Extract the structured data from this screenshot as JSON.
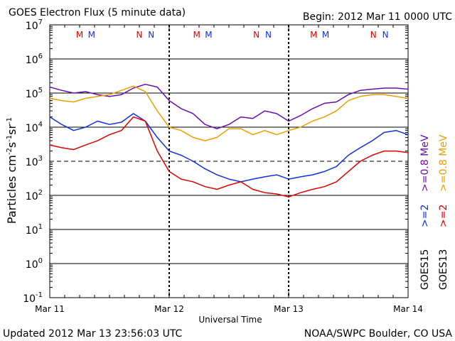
{
  "chart_data": {
    "type": "line",
    "title": "GOES Electron Flux (5 minute data)",
    "begin_label": "Begin: 2012 Mar 11 0000 UTC",
    "xlabel": "Universal Time",
    "ylabel": "Particles cm",
    "ylabel_exp1": "-2",
    "ylabel_mid": "s",
    "ylabel_exp2": "-1",
    "ylabel_end": "sr",
    "ylabel_exp3": "-1",
    "x_ticks": [
      "Mar 11",
      "Mar 12",
      "Mar 13",
      "Mar 14"
    ],
    "x_range_days": [
      0,
      3
    ],
    "y_scale": "log",
    "ylim": [
      0.1,
      10000000
    ],
    "y_tick_exponents": [
      "7",
      "6",
      "5",
      "4",
      "3",
      "2",
      "1",
      "0",
      "-1"
    ],
    "dashed_threshold": 1000,
    "footer_left": "Updated 2012 Mar 13 23:56:03 UTC",
    "footer_right": "NOAA/SWPC Boulder, CO USA",
    "noon_midnight_markers": [
      {
        "day": 0.25,
        "label": "M",
        "sat": "GOES13"
      },
      {
        "day": 0.35,
        "label": "M",
        "sat": "GOES15"
      },
      {
        "day": 0.75,
        "label": "N",
        "sat": "GOES13"
      },
      {
        "day": 0.85,
        "label": "N",
        "sat": "GOES15"
      },
      {
        "day": 1.23,
        "label": "M",
        "sat": "GOES13"
      },
      {
        "day": 1.33,
        "label": "M",
        "sat": "GOES15"
      },
      {
        "day": 1.73,
        "label": "N",
        "sat": "GOES13"
      },
      {
        "day": 1.83,
        "label": "N",
        "sat": "GOES15"
      },
      {
        "day": 2.21,
        "label": "M",
        "sat": "GOES13"
      },
      {
        "day": 2.31,
        "label": "M",
        "sat": "GOES15"
      },
      {
        "day": 2.71,
        "label": "N",
        "sat": "GOES13"
      },
      {
        "day": 2.81,
        "label": "N",
        "sat": "GOES15"
      }
    ],
    "legend": {
      "col1_top": ">=0.8 MeV",
      "col1_bottom": ">=2",
      "col1_sat": "GOES15",
      "col2_top": ">=0.8 MeV",
      "col2_bottom": ">=2",
      "col2_sat": "GOES13"
    },
    "series": [
      {
        "name": "GOES15 >=0.8 MeV",
        "color": "#6a0dad",
        "x": [
          0,
          0.1,
          0.2,
          0.3,
          0.4,
          0.5,
          0.6,
          0.7,
          0.8,
          0.9,
          1.0,
          1.1,
          1.2,
          1.3,
          1.4,
          1.5,
          1.6,
          1.7,
          1.8,
          1.9,
          2.0,
          2.1,
          2.2,
          2.3,
          2.4,
          2.5,
          2.6,
          2.7,
          2.8,
          2.9,
          3.0
        ],
        "y": [
          150000,
          120000,
          100000,
          110000,
          90000,
          80000,
          90000,
          140000,
          180000,
          150000,
          60000,
          35000,
          25000,
          12000,
          9000,
          12000,
          20000,
          18000,
          30000,
          25000,
          15000,
          22000,
          35000,
          50000,
          55000,
          90000,
          120000,
          130000,
          140000,
          140000,
          130000
        ]
      },
      {
        "name": "GOES13 >=0.8 MeV",
        "color": "#e8a000",
        "x": [
          0,
          0.1,
          0.2,
          0.3,
          0.4,
          0.5,
          0.6,
          0.7,
          0.8,
          0.9,
          1.0,
          1.1,
          1.2,
          1.3,
          1.4,
          1.5,
          1.6,
          1.7,
          1.8,
          1.9,
          2.0,
          2.1,
          2.2,
          2.3,
          2.4,
          2.5,
          2.6,
          2.7,
          2.8,
          2.9,
          3.0
        ],
        "y": [
          70000,
          60000,
          55000,
          70000,
          80000,
          90000,
          120000,
          160000,
          110000,
          30000,
          10000,
          8000,
          5000,
          4000,
          5000,
          9000,
          9000,
          6000,
          8000,
          6000,
          8000,
          10000,
          15000,
          20000,
          30000,
          60000,
          80000,
          90000,
          90000,
          80000,
          70000
        ]
      },
      {
        "name": "GOES15 >=2",
        "color": "#1030e0",
        "x": [
          0,
          0.1,
          0.2,
          0.3,
          0.4,
          0.5,
          0.6,
          0.7,
          0.8,
          0.9,
          1.0,
          1.1,
          1.2,
          1.3,
          1.4,
          1.5,
          1.6,
          1.7,
          1.8,
          1.9,
          2.0,
          2.1,
          2.2,
          2.3,
          2.4,
          2.5,
          2.6,
          2.7,
          2.8,
          2.9,
          3.0
        ],
        "y": [
          20000,
          12000,
          8000,
          10000,
          15000,
          12000,
          14000,
          25000,
          15000,
          5000,
          2000,
          1500,
          1000,
          600,
          400,
          300,
          250,
          300,
          350,
          400,
          300,
          350,
          400,
          500,
          700,
          1500,
          2500,
          4000,
          7000,
          8000,
          6000
        ]
      },
      {
        "name": "GOES13 >=2",
        "color": "#e00000",
        "x": [
          0,
          0.1,
          0.2,
          0.3,
          0.4,
          0.5,
          0.6,
          0.7,
          0.8,
          0.9,
          1.0,
          1.1,
          1.2,
          1.3,
          1.4,
          1.5,
          1.6,
          1.7,
          1.8,
          1.9,
          2.0,
          2.1,
          2.2,
          2.3,
          2.4,
          2.5,
          2.6,
          2.7,
          2.8,
          2.9,
          3.0
        ],
        "y": [
          3000,
          2500,
          2200,
          3000,
          4000,
          6000,
          8000,
          20000,
          15000,
          2000,
          500,
          300,
          250,
          180,
          150,
          200,
          250,
          150,
          120,
          110,
          90,
          120,
          150,
          180,
          250,
          500,
          1000,
          1500,
          2000,
          2000,
          1800
        ]
      }
    ]
  }
}
